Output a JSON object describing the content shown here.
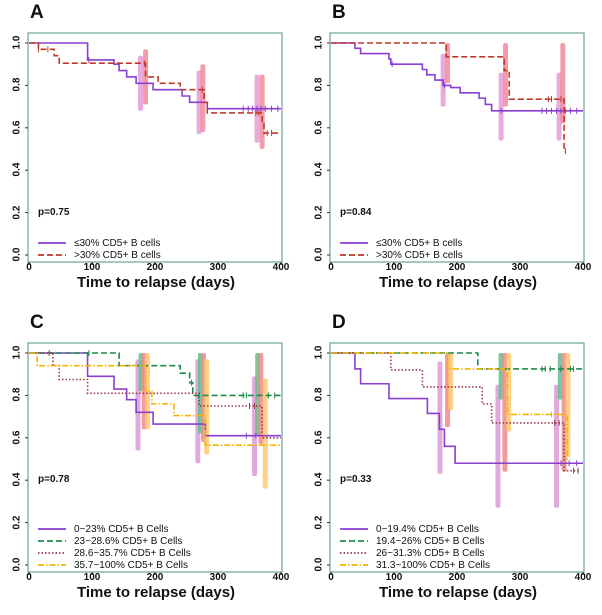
{
  "chart_data": [
    {
      "type": "line",
      "panel": "A",
      "xlabel": "Time to relapse (days)",
      "ylabel": "",
      "xlim": [
        0,
        400
      ],
      "ylim": [
        0,
        1
      ],
      "xticks": [
        "0",
        "100",
        "200",
        "300",
        "400"
      ],
      "yticks": [
        "0.0",
        "0.2",
        "0.4",
        "0.6",
        "0.8",
        "1.0"
      ],
      "p_value": "p=0.75",
      "p_y": 0.2,
      "series": [
        {
          "name": "≤30% CD5+ B cells",
          "color": "#8a3fd1",
          "dash": "solid",
          "ci_color": "#e59bd6",
          "steps": [
            [
              93,
              0.92
            ],
            [
              135,
              0.9
            ],
            [
              143,
              0.87
            ],
            [
              155,
              0.84
            ],
            [
              170,
              0.81
            ],
            [
              197,
              0.78
            ],
            [
              243,
              0.75
            ],
            [
              255,
              0.72
            ],
            [
              283,
              0.69
            ]
          ],
          "end": 400,
          "censors": [
            95,
            340,
            348,
            355,
            362,
            368,
            375,
            385,
            395
          ],
          "ci": [
            [
              177,
              0.68,
              0.94
            ],
            [
              270,
              0.57,
              0.87
            ],
            [
              362,
              0.53,
              0.85
            ]
          ]
        },
        {
          "name": ">30% CD5+ B cells",
          "color": "#c0392b",
          "dash": "dashed",
          "ci_color": "#f2899c",
          "steps": [
            [
              15,
              0.97
            ],
            [
              40,
              0.94
            ],
            [
              48,
              0.905
            ],
            [
              185,
              0.84
            ],
            [
              205,
              0.81
            ],
            [
              240,
              0.78
            ],
            [
              278,
              0.72
            ],
            [
              283,
              0.67
            ],
            [
              370,
              0.62
            ],
            [
              373,
              0.575
            ]
          ],
          "end": 400,
          "censors": [
            15,
            30,
            183,
            275,
            360,
            365,
            378,
            385
          ],
          "ci": [
            [
              185,
              0.71,
              0.97
            ],
            [
              276,
              0.58,
              0.9
            ],
            [
              370,
              0.5,
              0.85
            ]
          ]
        }
      ]
    },
    {
      "type": "line",
      "panel": "B",
      "xlabel": "Time to relapse (days)",
      "ylabel": "",
      "xlim": [
        0,
        400
      ],
      "ylim": [
        0,
        1
      ],
      "xticks": [
        "0",
        "100",
        "200",
        "300",
        "400"
      ],
      "yticks": [
        "0.0",
        "0.2",
        "0.4",
        "0.6",
        "0.8",
        "1.0"
      ],
      "p_value": "p=0.84",
      "p_y": 0.2,
      "series": [
        {
          "name": "≤30% CD5+ B cells",
          "color": "#8a3fd1",
          "dash": "solid",
          "ci_color": "#e59bd6",
          "steps": [
            [
              38,
              0.975
            ],
            [
              47,
              0.95
            ],
            [
              92,
              0.925
            ],
            [
              95,
              0.9
            ],
            [
              145,
              0.875
            ],
            [
              152,
              0.85
            ],
            [
              165,
              0.825
            ],
            [
              178,
              0.8
            ],
            [
              190,
              0.79
            ],
            [
              205,
              0.765
            ],
            [
              235,
              0.74
            ],
            [
              245,
              0.71
            ],
            [
              255,
              0.68
            ]
          ],
          "end": 400,
          "censors": [
            97,
            180,
            270,
            335,
            342,
            350,
            358,
            365,
            372,
            380,
            390
          ],
          "ci": [
            [
              178,
              0.7,
              0.95
            ],
            [
              270,
              0.54,
              0.86
            ],
            [
              362,
              0.54,
              0.86
            ]
          ]
        },
        {
          "name": ">30% CD5+ B cells",
          "color": "#c0392b",
          "dash": "dashed",
          "ci_color": "#f2899c",
          "steps": [
            [
              183,
              0.935
            ],
            [
              275,
              0.87
            ],
            [
              283,
              0.735
            ],
            [
              370,
              0.49
            ]
          ],
          "end": 373,
          "censors": [
            345,
            350,
            365,
            372
          ],
          "ci": [
            [
              185,
              0.81,
              1.0
            ],
            [
              277,
              0.7,
              1.0
            ],
            [
              368,
              0.62,
              1.0
            ]
          ]
        }
      ]
    },
    {
      "type": "line",
      "panel": "C",
      "xlabel": "Time to relapse (days)",
      "ylabel": "",
      "xlim": [
        0,
        400
      ],
      "ylim": [
        0,
        1
      ],
      "xticks": [
        "0",
        "100",
        "200",
        "300",
        "400"
      ],
      "yticks": [
        "0.0",
        "0.2",
        "0.4",
        "0.6",
        "0.8",
        "1.0"
      ],
      "p_value": "p=0.78",
      "p_y": 0.4,
      "series": [
        {
          "name": "0~23% CD5+ B Cells",
          "color": "#8a3fd1",
          "dash": "solid",
          "ci_color": "#dc9bd6",
          "steps": [
            [
              93,
              0.89
            ],
            [
              135,
              0.83
            ],
            [
              155,
              0.78
            ],
            [
              170,
              0.72
            ],
            [
              197,
              0.665
            ],
            [
              280,
              0.61
            ]
          ],
          "end": 400,
          "censors": [
            345,
            360
          ],
          "ci": [
            [
              173,
              0.54,
              0.97
            ],
            [
              268,
              0.48,
              0.97
            ],
            [
              358,
              0.42,
              0.89
            ]
          ]
        },
        {
          "name": "23~28.6% CD5+ B Cells",
          "color": "#1e8a4a",
          "dash": "dashed",
          "ci_color": "#5fbf8a",
          "steps": [
            [
              143,
              0.94
            ],
            [
              240,
              0.905
            ],
            [
              255,
              0.86
            ],
            [
              260,
              0.8
            ]
          ],
          "end": 400,
          "censors": [
            95,
            258,
            340,
            345,
            380,
            390
          ],
          "ci": [
            [
              178,
              0.82,
              1.0
            ],
            [
              272,
              0.62,
              1.0
            ],
            [
              363,
              0.61,
              1.0
            ]
          ]
        },
        {
          "name": "28.6~35.7% CD5+ B Cells",
          "color": "#9b3a4a",
          "dash": "dotted",
          "ci_color": "#f08a8a",
          "steps": [
            [
              38,
              0.94
            ],
            [
              48,
              0.875
            ],
            [
              93,
              0.81
            ],
            [
              270,
              0.75
            ],
            [
              370,
              0.6
            ]
          ],
          "end": 400,
          "censors": [
            32,
            350,
            358
          ],
          "ci": [
            [
              183,
              0.64,
              1.0
            ],
            [
              277,
              0.58,
              1.0
            ],
            [
              368,
              0.57,
              1.0
            ]
          ]
        },
        {
          "name": "35.7~100% CD5+ B Cells",
          "color": "#f5b400",
          "dash": "dashdot",
          "ci_color": "#ffc870",
          "steps": [
            [
              13,
              0.94
            ],
            [
              185,
              0.82
            ],
            [
              195,
              0.76
            ],
            [
              230,
              0.705
            ],
            [
              280,
              0.565
            ]
          ],
          "end": 400,
          "censors": [],
          "ci": [
            [
              188,
              0.64,
              1.0
            ],
            [
              282,
              0.52,
              0.97
            ],
            [
              375,
              0.36,
              0.88
            ]
          ]
        }
      ]
    },
    {
      "type": "line",
      "panel": "D",
      "xlabel": "Time to relapse (days)",
      "ylabel": "",
      "xlim": [
        0,
        400
      ],
      "ylim": [
        0,
        1
      ],
      "xticks": [
        "0",
        "100",
        "200",
        "300",
        "400"
      ],
      "yticks": [
        "0.0",
        "0.2",
        "0.4",
        "0.6",
        "0.8",
        "1.0"
      ],
      "p_value": "p=0.33",
      "p_y": 0.4,
      "series": [
        {
          "name": "0~19.4% CD5+ B Cells",
          "color": "#8a3fd1",
          "dash": "solid",
          "ci_color": "#dc9bd6",
          "steps": [
            [
              38,
              0.925
            ],
            [
              47,
              0.855
            ],
            [
              92,
              0.785
            ],
            [
              153,
              0.715
            ],
            [
              172,
              0.64
            ],
            [
              180,
              0.56
            ],
            [
              197,
              0.48
            ]
          ],
          "end": 400,
          "censors": [
            365,
            378,
            390
          ],
          "ci": [
            [
              173,
              0.43,
              0.96
            ],
            [
              265,
              0.27,
              0.85
            ],
            [
              358,
              0.27,
              0.85
            ]
          ]
        },
        {
          "name": "19.4~26% CD5+ B Cells",
          "color": "#1e8a4a",
          "dash": "dashed",
          "ci_color": "#5fbf8a",
          "steps": [
            [
              233,
              0.925
            ]
          ],
          "end": 400,
          "censors": [
            335,
            340,
            348,
            365,
            380,
            385
          ],
          "ci": [
            [
              270,
              0.78,
              1.0
            ],
            [
              364,
              0.78,
              1.0
            ]
          ]
        },
        {
          "name": "26~31.3% CD5+ B Cells",
          "color": "#9b3a4a",
          "dash": "dotted",
          "ci_color": "#f08a8a",
          "steps": [
            [
              95,
              0.92
            ],
            [
              145,
              0.84
            ],
            [
              240,
              0.76
            ],
            [
              255,
              0.67
            ],
            [
              370,
              0.445
            ]
          ],
          "end": 395,
          "censors": [
            355,
            362,
            385,
            392
          ],
          "ci": [
            [
              185,
              0.65,
              1.0
            ],
            [
              276,
              0.44,
              1.0
            ],
            [
              370,
              0.44,
              1.0
            ]
          ]
        },
        {
          "name": "31.3~100% CD5+ B Cells",
          "color": "#f5b400",
          "dash": "dashdot",
          "ci_color": "#ffc870",
          "steps": [
            [
              185,
              0.925
            ],
            [
              280,
              0.71
            ],
            [
              375,
              0.5
            ]
          ],
          "end": 380,
          "censors": [
            350,
            360
          ],
          "ci": [
            [
              190,
              0.73,
              1.0
            ],
            [
              282,
              0.63,
              1.0
            ],
            [
              376,
              0.51,
              1.0
            ]
          ]
        }
      ]
    }
  ]
}
